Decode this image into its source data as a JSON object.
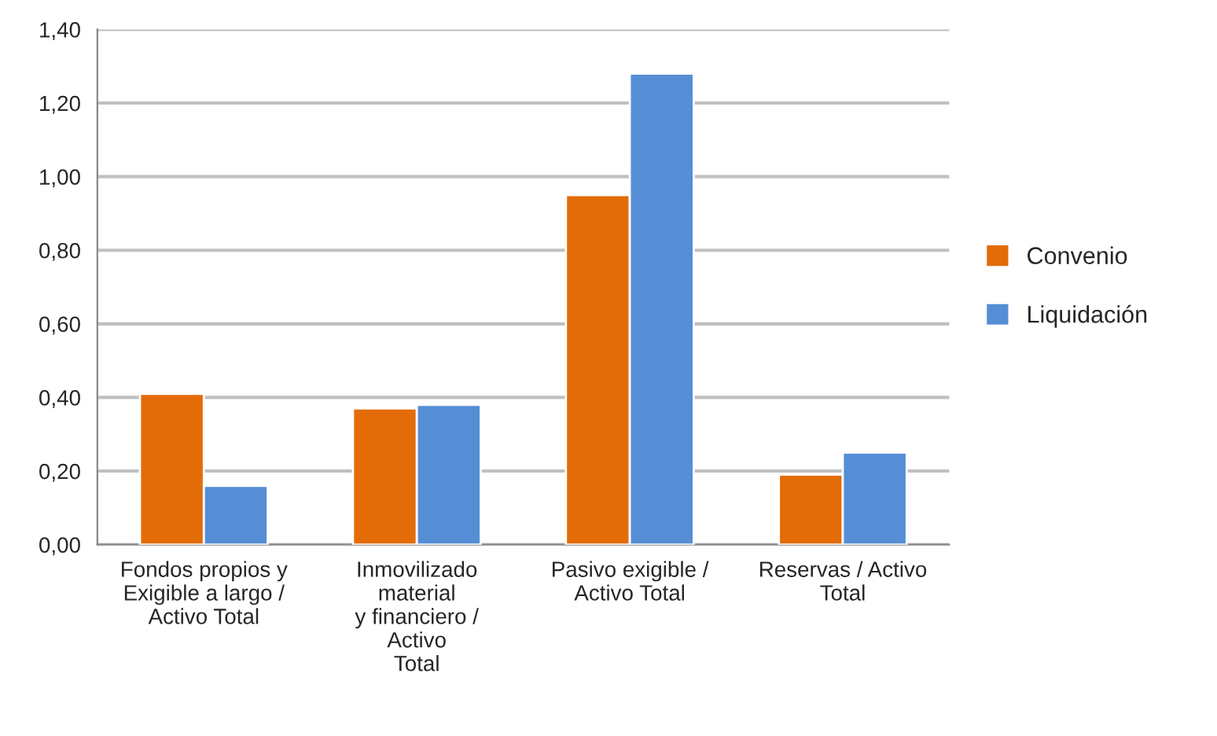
{
  "chart_data": {
    "type": "bar",
    "categories": [
      "Fondos propios y\nExigible a largo /\nActivo Total",
      "Inmovilizado\nmaterial\ny financiero /\nActivo\nTotal",
      "Pasivo exigible /\nActivo Total",
      "Reservas / Activo\nTotal"
    ],
    "series": [
      {
        "name": "Convenio",
        "color": "#e36c09",
        "values": [
          0.41,
          0.37,
          0.95,
          0.19
        ]
      },
      {
        "name": "Liquidación",
        "color": "#558ed5",
        "values": [
          0.16,
          0.38,
          1.28,
          0.25
        ]
      }
    ],
    "ylim": [
      0,
      1.4
    ],
    "yticks": [
      {
        "value": 0,
        "label": "0,00"
      },
      {
        "value": 0.2,
        "label": "0,20"
      },
      {
        "value": 0.4,
        "label": "0,40"
      },
      {
        "value": 0.6,
        "label": "0,60"
      },
      {
        "value": 0.8,
        "label": "0,80"
      },
      {
        "value": 1.0,
        "label": "1,00"
      },
      {
        "value": 1.2,
        "label": "1,20"
      },
      {
        "value": 1.4,
        "label": "1,40"
      }
    ],
    "grid": "y",
    "legend": "right"
  }
}
